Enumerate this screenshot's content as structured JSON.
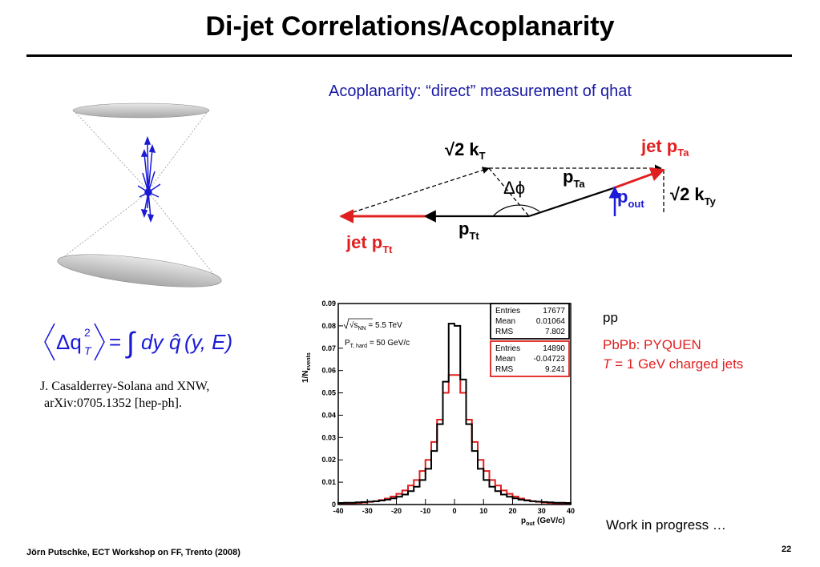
{
  "title": "Di-jet Correlations/Acoplanarity",
  "subtitle": "Acoplanarity: “direct” measurement of qhat",
  "formula": {
    "lhs_delta_q": "Δq",
    "lhs_sup": "2",
    "lhs_sub": "T",
    "equals": "=",
    "integral": "∫",
    "rhs": "dy",
    "qhat": "q̂",
    "args": "(y, E)"
  },
  "reference": {
    "line1": "J. Casalderrey-Solana and XNW,",
    "line2": "arXiv:0705.1352 [hep-ph]."
  },
  "diagram": {
    "kT_label": "√2 k",
    "kT_sub": "T",
    "jet_a_label": "jet p",
    "jet_a_sub": "Ta",
    "pTa_label": "p",
    "pTa_sub": "Ta",
    "dphi_label": "Δϕ",
    "pout_label": "p",
    "pout_sub": "out",
    "kTy_label": "√2 k",
    "kTy_sub": "Ty",
    "pTt_label": "p",
    "pTt_sub": "Tt",
    "jet_t_label": "jet p",
    "jet_t_sub": "Tt",
    "colors": {
      "red": "#e02020",
      "blue": "#1a1ad6",
      "black": "#000000"
    }
  },
  "legend": {
    "pp": "pp",
    "pbpb": "PbPb: PYQUEN",
    "t_italic": "T",
    "t_rest": " = 1 GeV charged jets"
  },
  "note": "Work in progress …",
  "footer": "Jörn Putschke, ECT Workshop on FF, Trento (2008)",
  "page_number": "22",
  "chart_data": {
    "type": "line",
    "xlabel_main": "p",
    "xlabel_sub": "out",
    "xlabel_unit": "(GeV/c)",
    "ylabel_main": "1/N",
    "ylabel_sub": "events",
    "xlim": [
      -40,
      40
    ],
    "ylim": [
      0,
      0.09
    ],
    "x_ticks": [
      "-40",
      "-30",
      "-20",
      "-10",
      "0",
      "10",
      "20",
      "30",
      "40"
    ],
    "y_ticks": [
      "0",
      "0.01",
      "0.02",
      "0.03",
      "0.04",
      "0.05",
      "0.06",
      "0.07",
      "0.08",
      "0.09"
    ],
    "annotation1_main": "√s",
    "annotation1_sub": "NN",
    "annotation1_val": " = 5.5 TeV",
    "annotation2_main": "P",
    "annotation2_sub": "T, hard",
    "annotation2_val": " = 50 GeV/c",
    "stats": [
      {
        "color": "#000000",
        "rows": [
          [
            "Entries",
            "17677"
          ],
          [
            "Mean",
            "0.01064"
          ],
          [
            "RMS",
            "7.802"
          ]
        ]
      },
      {
        "color": "#e02020",
        "rows": [
          [
            "Entries",
            "14890"
          ],
          [
            "Mean",
            "-0.04723"
          ],
          [
            "RMS",
            "9.241"
          ]
        ]
      }
    ],
    "x": [
      -39,
      -37,
      -35,
      -33,
      -31,
      -29,
      -27,
      -25,
      -23,
      -21,
      -19,
      -17,
      -15,
      -13,
      -11,
      -9,
      -7,
      -5,
      -3,
      -1,
      1,
      3,
      5,
      7,
      9,
      11,
      13,
      15,
      17,
      19,
      21,
      23,
      25,
      27,
      29,
      31,
      33,
      35,
      37,
      39
    ],
    "series": [
      {
        "color": "#000000",
        "values": [
          0.0007,
          0.0008,
          0.0008,
          0.001,
          0.0011,
          0.0013,
          0.0015,
          0.0018,
          0.0022,
          0.0028,
          0.0035,
          0.0045,
          0.006,
          0.008,
          0.011,
          0.016,
          0.024,
          0.036,
          0.055,
          0.081,
          0.08,
          0.056,
          0.036,
          0.024,
          0.016,
          0.011,
          0.008,
          0.006,
          0.0045,
          0.0035,
          0.0028,
          0.0022,
          0.0018,
          0.0015,
          0.0013,
          0.0011,
          0.001,
          0.0008,
          0.0008,
          0.0007
        ]
      },
      {
        "color": "#e02020",
        "values": [
          0.0004,
          0.0005,
          0.0006,
          0.0007,
          0.0009,
          0.0012,
          0.0015,
          0.002,
          0.0027,
          0.0036,
          0.0048,
          0.0063,
          0.0085,
          0.011,
          0.015,
          0.02,
          0.028,
          0.038,
          0.05,
          0.058,
          0.058,
          0.05,
          0.038,
          0.028,
          0.02,
          0.015,
          0.011,
          0.0085,
          0.0063,
          0.0048,
          0.0036,
          0.0027,
          0.002,
          0.0015,
          0.0012,
          0.0009,
          0.0007,
          0.0006,
          0.0005,
          0.0004
        ]
      }
    ]
  }
}
